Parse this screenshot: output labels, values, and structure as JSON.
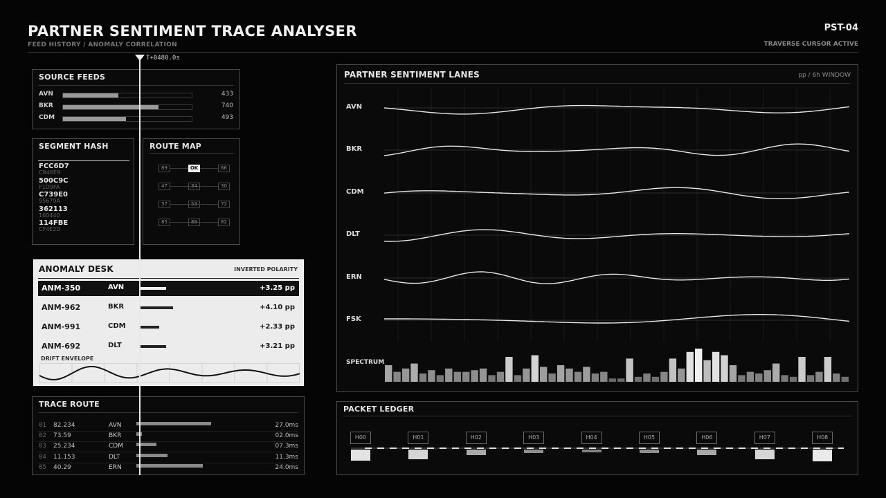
{
  "header": {
    "title": "PARTNER SENTIMENT TRACE ANALYSER",
    "subtitle": "FEED HISTORY / ANOMALY CORRELATION",
    "code": "PST-04",
    "status": "TRAVERSE CURSOR ACTIVE",
    "cursor_label": "T+0480.0s"
  },
  "source_feeds": {
    "title": "SOURCE FEEDS",
    "items": [
      {
        "label": "AVN",
        "value": "433",
        "fraction": 0.43
      },
      {
        "label": "BKR",
        "value": "740",
        "fraction": 0.74
      },
      {
        "label": "CDM",
        "value": "493",
        "fraction": 0.49
      }
    ]
  },
  "segment_hash": {
    "title": "SEGMENT HASH",
    "items": [
      {
        "main": "FCC6D7",
        "sub": "C846E9"
      },
      {
        "main": "500C9C",
        "sub": "F1D9FA"
      },
      {
        "main": "C739E0",
        "sub": "95679A"
      },
      {
        "main": "362113",
        "sub": "160440"
      },
      {
        "main": "114FBE",
        "sub": "CF4E2D"
      }
    ]
  },
  "route_map": {
    "title": "ROUTE MAP",
    "rows": [
      [
        "89",
        "OK",
        "66"
      ],
      [
        "47",
        "34",
        "30"
      ],
      [
        "37",
        "53",
        "72"
      ],
      [
        "85",
        "89",
        "82"
      ]
    ]
  },
  "anomaly_desk": {
    "title": "ANOMALY DESK",
    "mode": "INVERTED POLARITY",
    "rows": [
      {
        "id": "ANM-350",
        "channel": "AVN",
        "delta": "+3.25 pp",
        "magnitude": 3.25,
        "selected": true
      },
      {
        "id": "ANM-962",
        "channel": "BKR",
        "delta": "+4.10 pp",
        "magnitude": 4.1,
        "selected": false
      },
      {
        "id": "ANM-991",
        "channel": "CDM",
        "delta": "+2.33 pp",
        "magnitude": 2.33,
        "selected": false
      },
      {
        "id": "ANM-692",
        "channel": "DLT",
        "delta": "+3.21 pp",
        "magnitude": 3.21,
        "selected": false
      }
    ],
    "envelope_label": "DRIFT ENVELOPE"
  },
  "trace_route": {
    "title": "TRACE ROUTE",
    "rows": [
      {
        "idx": "01",
        "ip": "82.234",
        "channel": "AVN",
        "latency": "27.0ms",
        "ms": 27.0
      },
      {
        "idx": "02",
        "ip": "73.59",
        "channel": "BKR",
        "latency": "02.0ms",
        "ms": 2.0
      },
      {
        "idx": "03",
        "ip": "25.234",
        "channel": "CDM",
        "latency": "07.3ms",
        "ms": 7.3
      },
      {
        "idx": "04",
        "ip": "11.153",
        "channel": "DLT",
        "latency": "11.3ms",
        "ms": 11.3
      },
      {
        "idx": "05",
        "ip": "40.29",
        "channel": "ERN",
        "latency": "24.0ms",
        "ms": 24.0
      }
    ]
  },
  "lanes": {
    "title": "PARTNER SENTIMENT LANES",
    "unit": "pp / 6h WINDOW",
    "labels": [
      "AVN",
      "BKR",
      "CDM",
      "DLT",
      "ERN",
      "FSK"
    ],
    "spectrum_label": "SPECTRUM",
    "spectrum": [
      0.5,
      0.3,
      0.4,
      0.55,
      0.25,
      0.35,
      0.2,
      0.4,
      0.3,
      0.3,
      0.35,
      0.4,
      0.2,
      0.3,
      0.75,
      0.2,
      0.4,
      0.8,
      0.45,
      0.25,
      0.5,
      0.4,
      0.3,
      0.45,
      0.25,
      0.3,
      0.1,
      0.1,
      0.7,
      0.15,
      0.25,
      0.15,
      0.3,
      0.7,
      0.4,
      0.9,
      1.0,
      0.65,
      0.9,
      0.8,
      0.5,
      0.2,
      0.3,
      0.25,
      0.35,
      0.55,
      0.2,
      0.15,
      0.75,
      0.2,
      0.3,
      0.75,
      0.25,
      0.15
    ]
  },
  "packet_ledger": {
    "title": "PACKET LEDGER",
    "packets": [
      {
        "label": "H00",
        "level": 0.9
      },
      {
        "label": "H01",
        "level": 0.8
      },
      {
        "label": "H02",
        "level": 0.45
      },
      {
        "label": "H03",
        "level": 0.25
      },
      {
        "label": "H04",
        "level": 0.15
      },
      {
        "label": "H05",
        "level": 0.25
      },
      {
        "label": "H06",
        "level": 0.45
      },
      {
        "label": "H07",
        "level": 0.8
      },
      {
        "label": "H08",
        "level": 0.95
      }
    ]
  }
}
